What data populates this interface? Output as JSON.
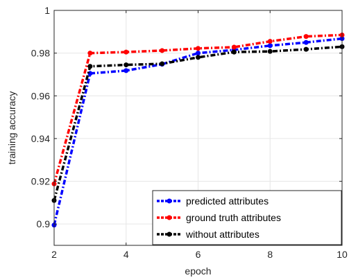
{
  "chart_data": {
    "type": "line",
    "xlabel": "epoch",
    "ylabel": "training accuracy",
    "xlim": [
      2,
      10
    ],
    "ylim": [
      0.89,
      1.0
    ],
    "xticks": [
      2,
      4,
      6,
      8,
      10
    ],
    "xtick_labels": [
      "2",
      "4",
      "6",
      "8",
      "10"
    ],
    "yticks": [
      0.9,
      0.92,
      0.94,
      0.96,
      0.98,
      1.0
    ],
    "ytick_labels": [
      "0.9",
      "0.92",
      "0.94",
      "0.96",
      "0.98",
      "1"
    ],
    "grid": true,
    "legend_position": "bottom-right",
    "x": [
      2,
      3,
      4,
      5,
      6,
      7,
      8,
      9,
      10
    ],
    "series": [
      {
        "name": "predicted attributes",
        "color": "#0000ff",
        "values": [
          0.8995,
          0.9705,
          0.9718,
          0.9748,
          0.98,
          0.9815,
          0.9835,
          0.985,
          0.9868
        ]
      },
      {
        "name": "ground truth attributes",
        "color": "#ff0000",
        "values": [
          0.9188,
          0.98,
          0.9805,
          0.9812,
          0.9822,
          0.9828,
          0.9855,
          0.9878,
          0.9885
        ]
      },
      {
        "name": "without attributes",
        "color": "#000000",
        "values": [
          0.911,
          0.9738,
          0.9745,
          0.975,
          0.978,
          0.9805,
          0.9808,
          0.9818,
          0.983
        ]
      }
    ]
  }
}
